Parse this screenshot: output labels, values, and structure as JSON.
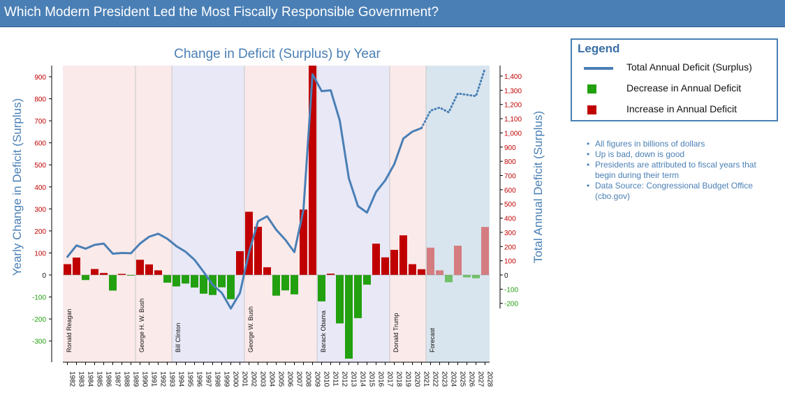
{
  "header": {
    "title": "Which Modern President Led the Most Fiscally Responsible Government?"
  },
  "legend": {
    "title": "Legend",
    "items": [
      {
        "label": "Total Annual Deficit (Surplus)",
        "color": "#4a7fb5"
      },
      {
        "label": "Decrease in Annual Deficit",
        "color": "#22a00f"
      },
      {
        "label": "Increase in Annual Deficit",
        "color": "#c00000"
      }
    ]
  },
  "notes": [
    "All figures in billions of dollars",
    "Up is bad, down is good",
    "Presidents are attributed to fiscal years that begin during their term",
    "Data Source: Congressional Budget Office (cbo.gov)"
  ],
  "chart_data": {
    "type": "bar",
    "title": "Change in Deficit (Surplus) by Year",
    "ylabel": "Yearly Change in Deficit (Surplus)",
    "y2label": "Total Annual Deficit (Surplus)",
    "ylim": [
      -400,
      950
    ],
    "y2lim": [
      -300,
      1470
    ],
    "yticks": [
      -300,
      -200,
      -100,
      0,
      100,
      200,
      300,
      400,
      500,
      600,
      700,
      800,
      900
    ],
    "y2ticks": [
      -200,
      -100,
      0,
      100,
      200,
      300,
      400,
      500,
      600,
      700,
      800,
      900,
      1000,
      1100,
      1200,
      1300,
      1400
    ],
    "categories": [
      "1982",
      "1983",
      "1984",
      "1985",
      "1986",
      "1987",
      "1988",
      "1989",
      "1990",
      "1991",
      "1992",
      "1993",
      "1994",
      "1995",
      "1996",
      "1997",
      "1998",
      "1999",
      "2000",
      "2001",
      "2002",
      "2003",
      "2004",
      "2005",
      "2006",
      "2007",
      "2008",
      "2009",
      "2010",
      "2011",
      "2012",
      "2013",
      "2014",
      "2015",
      "2016",
      "2017",
      "2018",
      "2019",
      "2020",
      "2021",
      "2022",
      "2023",
      "2024",
      "2025",
      "2026",
      "2027",
      "2028"
    ],
    "change": [
      49,
      79,
      -23,
      27,
      9,
      -71,
      5,
      -2,
      69,
      48,
      21,
      -35,
      -52,
      -39,
      -57,
      -85,
      -91,
      -56,
      -110,
      108,
      287,
      219,
      35,
      -94,
      -70,
      -88,
      297,
      1053,
      -120,
      6,
      -220,
      -380,
      -196,
      -44,
      142,
      80,
      114,
      180,
      49,
      26,
      124,
      21,
      -33,
      133,
      -11,
      -15,
      218
    ],
    "total_deficit": [
      128,
      208,
      185,
      212,
      221,
      150,
      155,
      153,
      221,
      269,
      290,
      255,
      203,
      164,
      107,
      22,
      -69,
      -126,
      -236,
      -128,
      158,
      378,
      413,
      318,
      248,
      161,
      459,
      1413,
      1294,
      1300,
      1087,
      680,
      485,
      439,
      585,
      665,
      779,
      960,
      1009,
      1034,
      1157,
      1178,
      1145,
      1278,
      1268,
      1259,
      1454
    ],
    "forecast_from": "2021",
    "eras": [
      {
        "name": "Ronald Reagan",
        "start": "1982",
        "end": "1989",
        "color": "#fbeaea"
      },
      {
        "name": "George H. W. Bush",
        "start": "1990",
        "end": "1993",
        "color": "#fbeaea"
      },
      {
        "name": "Bill Clinton",
        "start": "1994",
        "end": "2001",
        "color": "#e8e8f7"
      },
      {
        "name": "George W. Bush",
        "start": "2002",
        "end": "2009",
        "color": "#fbeaea"
      },
      {
        "name": "Barack Obama",
        "start": "2010",
        "end": "2017",
        "color": "#e8e8f7"
      },
      {
        "name": "Donald Trump",
        "start": "2018",
        "end": "2021",
        "color": "#fbeaea"
      },
      {
        "name": "Forecast",
        "start": "2022",
        "end": "2028",
        "color": "#d8e5ee"
      }
    ]
  }
}
